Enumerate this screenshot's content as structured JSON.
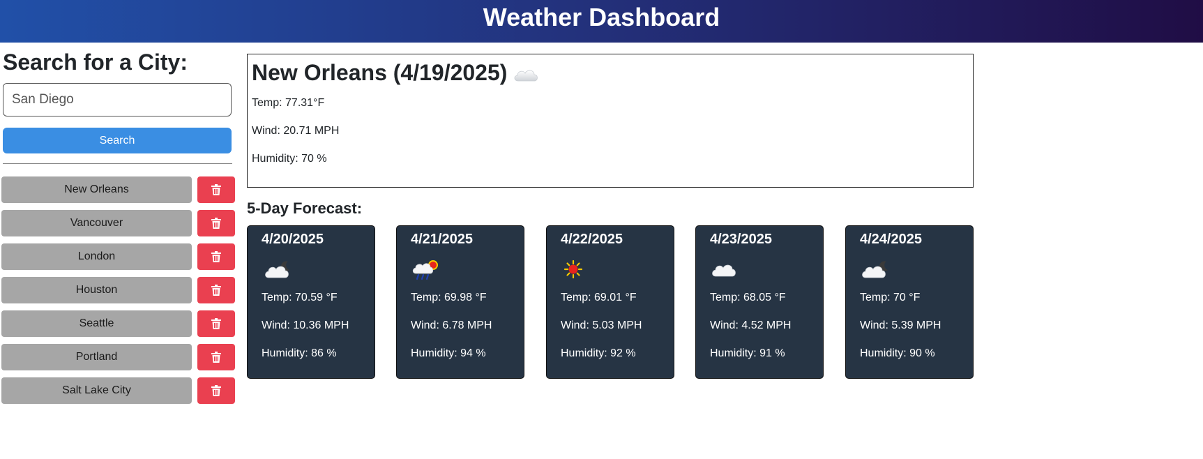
{
  "header": {
    "title": "Weather Dashboard"
  },
  "sidebar": {
    "heading": "Search for a City:",
    "search_value": "San Diego",
    "search_button": "Search",
    "history": [
      {
        "city": "New Orleans",
        "delete_icon": "trash-icon"
      },
      {
        "city": "Vancouver",
        "delete_icon": "trash-icon"
      },
      {
        "city": "London",
        "delete_icon": "trash-icon"
      },
      {
        "city": "Houston",
        "delete_icon": "trash-icon"
      },
      {
        "city": "Seattle",
        "delete_icon": "trash-icon"
      },
      {
        "city": "Portland",
        "delete_icon": "trash-icon"
      },
      {
        "city": "Salt Lake City",
        "delete_icon": "trash-icon"
      }
    ]
  },
  "current": {
    "title": "New Orleans (4/19/2025)",
    "icon": "cloud-icon",
    "temp": "Temp: 77.31°F",
    "wind": "Wind: 20.71 MPH",
    "humidity": "Humidity: 70 %"
  },
  "forecast": {
    "heading": "5-Day Forecast:",
    "days": [
      {
        "date": "4/20/2025",
        "icon": "night-cloud-icon",
        "temp": "Temp: 70.59 °F",
        "wind": "Wind: 10.36 MPH",
        "humidity": "Humidity: 86 %"
      },
      {
        "date": "4/21/2025",
        "icon": "rain-sun-icon",
        "temp": "Temp: 69.98 °F",
        "wind": "Wind: 6.78 MPH",
        "humidity": "Humidity: 94 %"
      },
      {
        "date": "4/22/2025",
        "icon": "sun-icon",
        "temp": "Temp: 69.01 °F",
        "wind": "Wind: 5.03 MPH",
        "humidity": "Humidity: 92 %"
      },
      {
        "date": "4/23/2025",
        "icon": "cloud-icon",
        "temp": "Temp: 68.05 °F",
        "wind": "Wind: 4.52 MPH",
        "humidity": "Humidity: 91 %"
      },
      {
        "date": "4/24/2025",
        "icon": "night-cloud-icon",
        "temp": "Temp: 70 °F",
        "wind": "Wind: 5.39 MPH",
        "humidity": "Humidity: 90 %"
      }
    ]
  },
  "colors": {
    "search_button": "#3a8ee3",
    "city_button": "#a6a6a6",
    "delete_button": "#ea4050",
    "card_bg": "#263444"
  }
}
